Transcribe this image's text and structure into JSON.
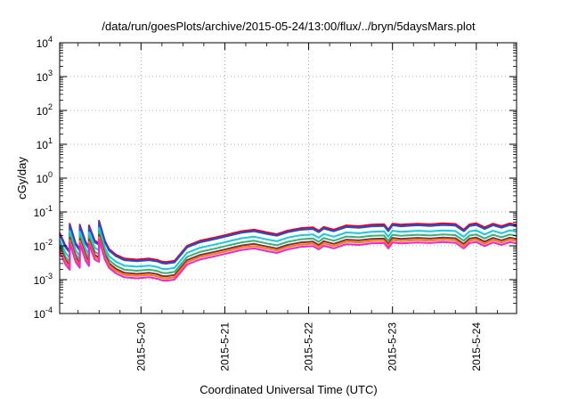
{
  "chart_data": {
    "type": "line",
    "title": "/data/run/goesPlots/archive/2015-05-24/13:00/flux/../bryn/5daysMars.plot",
    "xlabel": "Coordinated Universal Time (UTC)",
    "ylabel": "cGy/day",
    "yscale": "log",
    "ylim": [
      0.0001,
      10000
    ],
    "xlim": [
      -0.97,
      4.48
    ],
    "x_unit": "days from 2015-5-20 00:00 UTC",
    "grid": true,
    "legend": "none",
    "ytick_labels": [
      {
        "base": "10",
        "exp": "-4"
      },
      {
        "base": "10",
        "exp": "-3"
      },
      {
        "base": "10",
        "exp": "-2"
      },
      {
        "base": "10",
        "exp": "-1"
      },
      {
        "base": "10",
        "exp": "0"
      },
      {
        "base": "10",
        "exp": "1"
      },
      {
        "base": "10",
        "exp": "2"
      },
      {
        "base": "10",
        "exp": "3"
      },
      {
        "base": "10",
        "exp": "4"
      }
    ],
    "xtick_labels": [
      "2015-5-20",
      "2015-5-21",
      "2015-5-22",
      "2015-5-23",
      "2015-5-24"
    ],
    "series": [
      {
        "color": "#e8001e",
        "factor": 1.0
      },
      {
        "color": "#1a4fd6",
        "factor": 0.9
      },
      {
        "color": "#19c8e0",
        "factor": 0.62
      },
      {
        "color": "#2bb673",
        "factor": 0.47
      },
      {
        "color": "#7a2f43",
        "factor": 0.38
      },
      {
        "color": "#ff7a00",
        "factor": 0.33
      },
      {
        "color": "#ff1fd0",
        "factor": 0.28
      }
    ],
    "base_curve": {
      "x": [
        -0.97,
        -0.9,
        -0.85,
        -0.85,
        -0.78,
        -0.73,
        -0.73,
        -0.66,
        -0.62,
        -0.62,
        -0.55,
        -0.5,
        -0.5,
        -0.43,
        -0.38,
        -0.3,
        -0.2,
        -0.05,
        0.1,
        0.2,
        0.25,
        0.3,
        0.4,
        0.55,
        0.7,
        0.9,
        1.05,
        1.2,
        1.35,
        1.5,
        1.62,
        1.75,
        1.9,
        2.05,
        2.12,
        2.18,
        2.3,
        2.45,
        2.6,
        2.75,
        2.9,
        2.95,
        3.0,
        3.1,
        3.3,
        3.45,
        3.6,
        3.75,
        3.85,
        3.92,
        4.0,
        4.1,
        4.2,
        4.3,
        4.4,
        4.48
      ],
      "y": [
        0.024,
        0.01,
        0.007,
        0.045,
        0.012,
        0.008,
        0.042,
        0.013,
        0.009,
        0.04,
        0.014,
        0.012,
        0.055,
        0.014,
        0.008,
        0.0055,
        0.0042,
        0.0039,
        0.0042,
        0.0038,
        0.0034,
        0.0033,
        0.0036,
        0.01,
        0.014,
        0.018,
        0.022,
        0.027,
        0.03,
        0.025,
        0.022,
        0.028,
        0.033,
        0.035,
        0.028,
        0.036,
        0.03,
        0.04,
        0.038,
        0.042,
        0.043,
        0.03,
        0.045,
        0.042,
        0.045,
        0.043,
        0.046,
        0.044,
        0.03,
        0.043,
        0.046,
        0.035,
        0.045,
        0.038,
        0.046,
        0.042
      ]
    }
  }
}
